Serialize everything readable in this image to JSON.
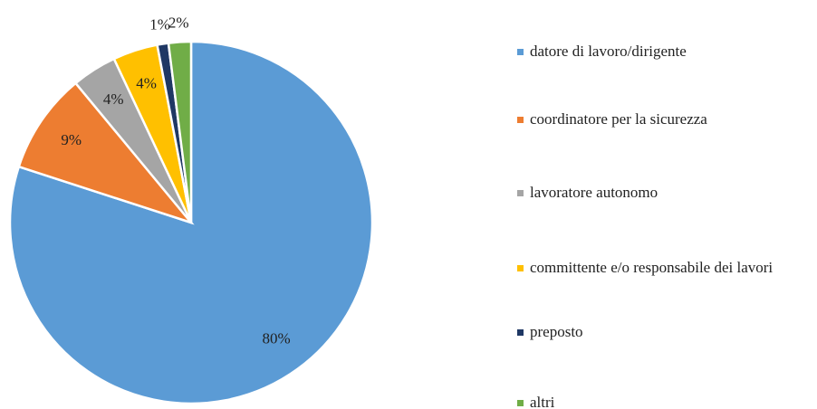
{
  "chart_data": {
    "type": "pie",
    "categories": [
      "datore di lavoro/dirigente",
      "coordinatore per la sicurezza",
      "lavoratore autonomo",
      "committente e/o responsabile dei lavori",
      "preposto",
      "altri"
    ],
    "values": [
      80,
      9,
      4,
      4,
      1,
      2
    ],
    "value_labels": [
      "80%",
      "9%",
      "4%",
      "4%",
      "1%",
      "2%"
    ],
    "colors": [
      "#5b9bd5",
      "#ed7d31",
      "#a5a5a5",
      "#ffc000",
      "#1f3864",
      "#70ad47"
    ],
    "legend": "right"
  }
}
